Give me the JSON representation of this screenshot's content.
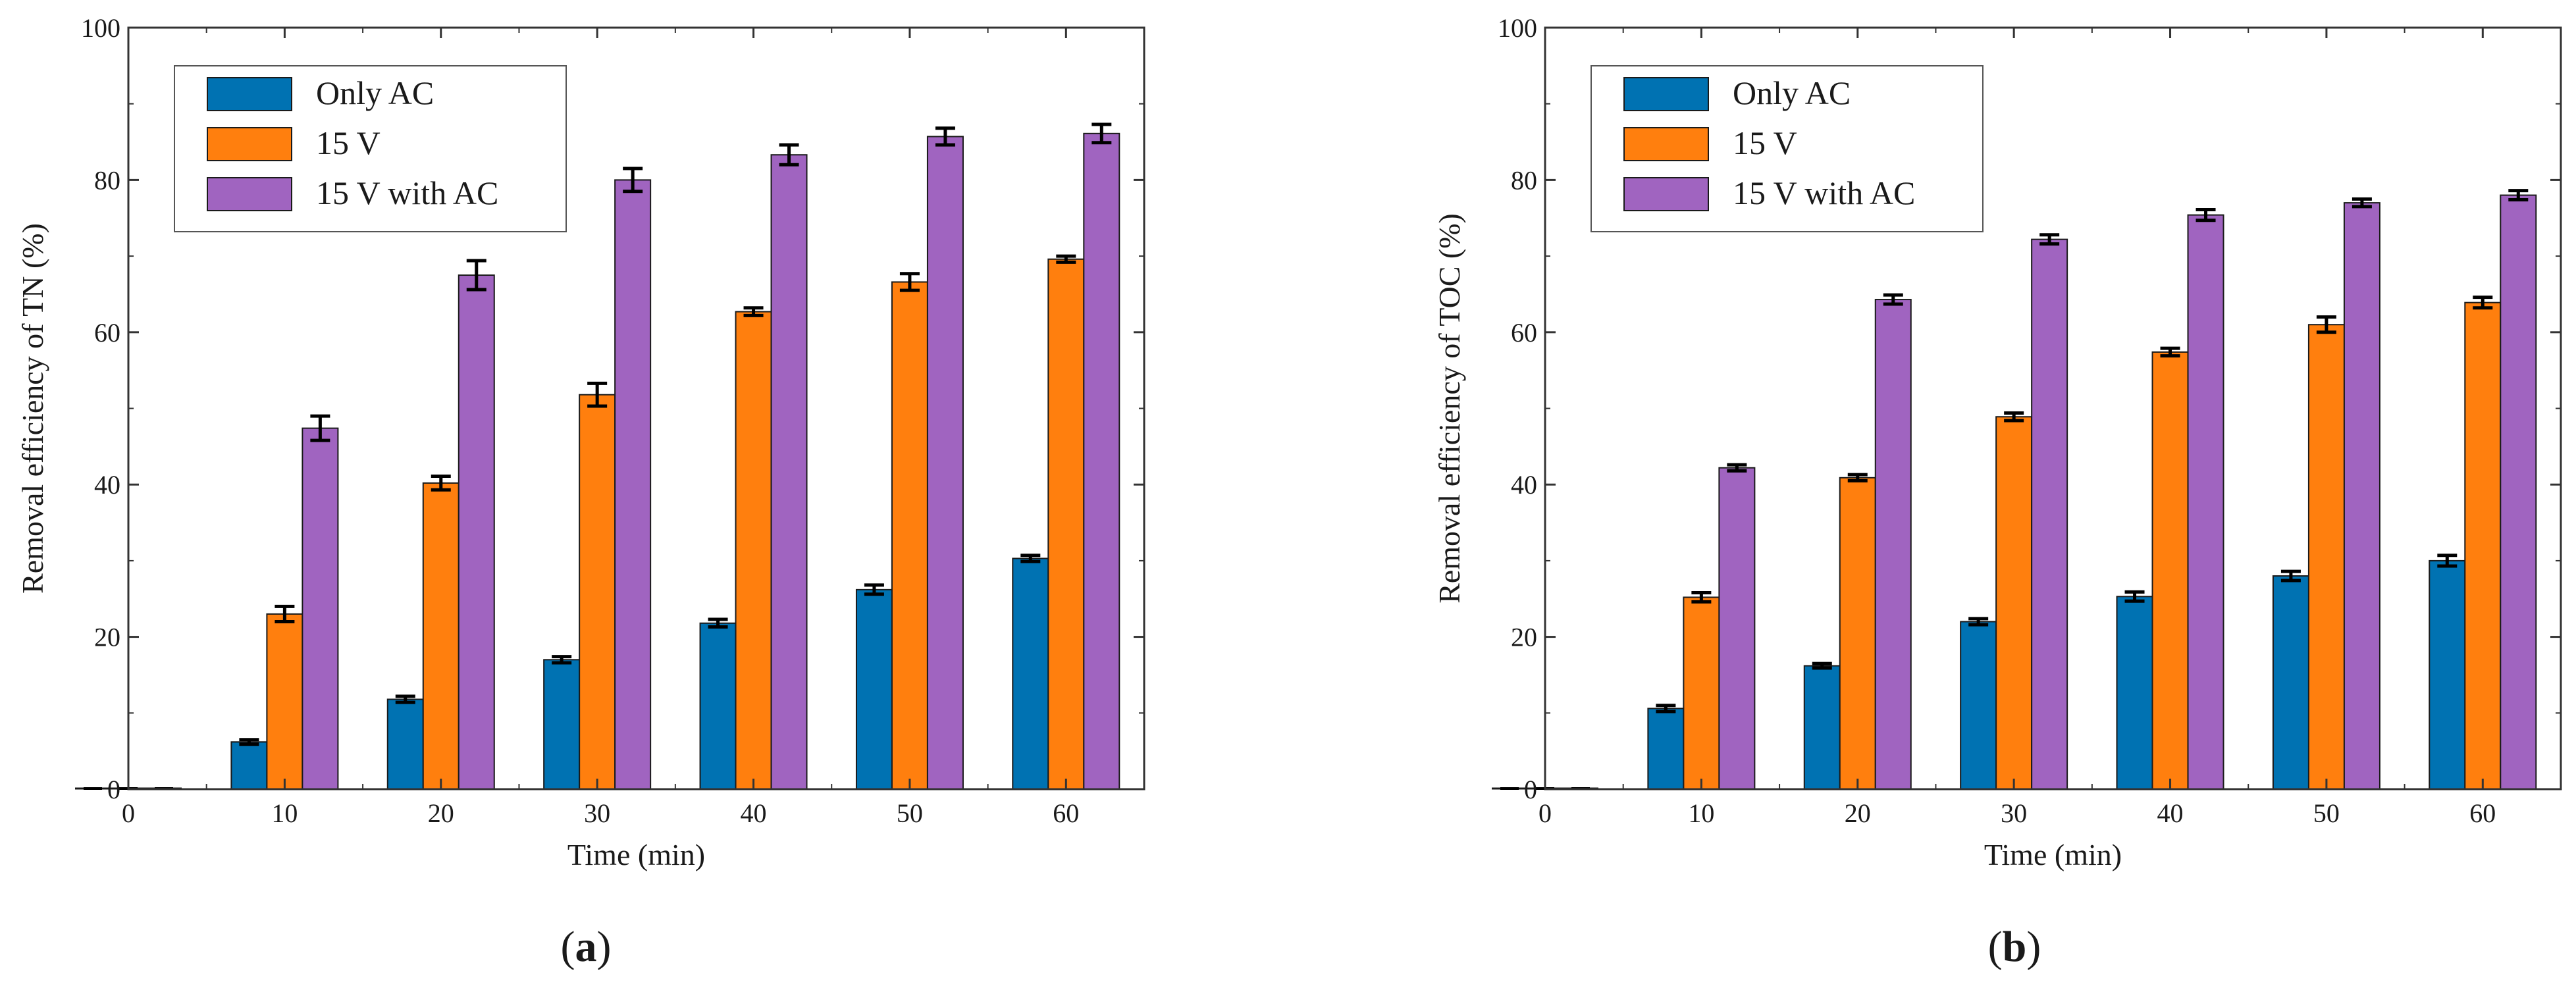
{
  "chart_data": [
    {
      "type": "bar",
      "panel_label": "a",
      "xlabel": "Time (min)",
      "ylabel": "Removal efficiency of TN (%)",
      "x": [
        0,
        10,
        20,
        30,
        40,
        50,
        60
      ],
      "xlim": [
        0,
        65
      ],
      "ylim": [
        0,
        100
      ],
      "xticks": [
        0,
        10,
        20,
        30,
        40,
        50,
        60
      ],
      "yticks": [
        0,
        20,
        40,
        60,
        80,
        100
      ],
      "legend_position": "top-left",
      "series": [
        {
          "name": "Only AC",
          "color": "#0072B2",
          "values": [
            0,
            6.2,
            11.8,
            17.0,
            21.8,
            26.2,
            30.3
          ],
          "errors": [
            0,
            0.3,
            0.4,
            0.4,
            0.5,
            0.6,
            0.4
          ]
        },
        {
          "name": "15 V",
          "color": "#FF7F0E",
          "values": [
            0,
            23.0,
            40.2,
            51.8,
            62.7,
            66.6,
            69.6
          ],
          "errors": [
            0,
            1.0,
            0.9,
            1.5,
            0.5,
            1.1,
            0.4
          ]
        },
        {
          "name": "15 V with AC",
          "color": "#A064C0",
          "values": [
            0,
            47.4,
            67.5,
            80.0,
            83.3,
            85.7,
            86.1
          ],
          "errors": [
            0,
            1.6,
            1.9,
            1.5,
            1.3,
            1.1,
            1.2
          ]
        }
      ]
    },
    {
      "type": "bar",
      "panel_label": "b",
      "xlabel": "Time (min)",
      "ylabel": "Removal efficiency of TOC (%)",
      "x": [
        0,
        10,
        20,
        30,
        40,
        50,
        60
      ],
      "xlim": [
        0,
        65
      ],
      "ylim": [
        0,
        100
      ],
      "xticks": [
        0,
        10,
        20,
        30,
        40,
        50,
        60
      ],
      "yticks": [
        0,
        20,
        40,
        60,
        80,
        100
      ],
      "legend_position": "top-left",
      "series": [
        {
          "name": "Only AC",
          "color": "#0072B2",
          "values": [
            0,
            10.6,
            16.2,
            22.0,
            25.3,
            28.0,
            30.0
          ],
          "errors": [
            0,
            0.4,
            0.3,
            0.4,
            0.6,
            0.6,
            0.7
          ]
        },
        {
          "name": "15 V",
          "color": "#FF7F0E",
          "values": [
            0,
            25.2,
            40.9,
            48.9,
            57.4,
            61.0,
            63.9
          ],
          "errors": [
            0,
            0.6,
            0.4,
            0.5,
            0.5,
            1.0,
            0.7
          ]
        },
        {
          "name": "15 V with AC",
          "color": "#A064C0",
          "values": [
            0,
            42.2,
            64.3,
            72.2,
            75.4,
            77.0,
            78.0
          ],
          "errors": [
            0,
            0.4,
            0.6,
            0.6,
            0.7,
            0.5,
            0.6
          ]
        }
      ]
    }
  ]
}
